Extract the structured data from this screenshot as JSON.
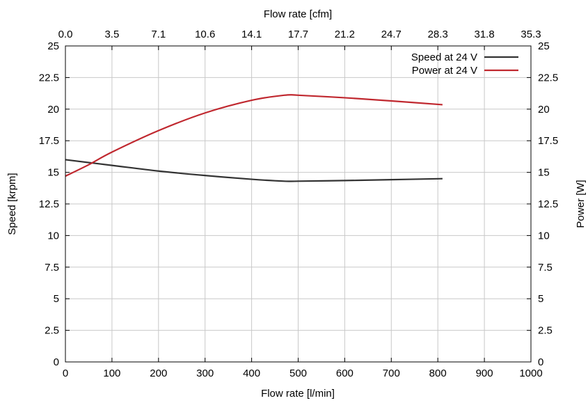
{
  "chart_data": {
    "type": "line",
    "title": "",
    "xlabel": "Flow rate [l/min]",
    "x2label": "Flow rate [cfm]",
    "ylabel": "Speed [krpm]",
    "y2label": "Power [W]",
    "xlim": [
      0,
      1000
    ],
    "ylim": [
      0,
      25
    ],
    "y2lim": [
      0,
      25
    ],
    "xticks": [
      0,
      100,
      200,
      300,
      400,
      500,
      600,
      700,
      800,
      900,
      1000
    ],
    "x2ticks": [
      "0.0",
      "3.5",
      "7.1",
      "10.6",
      "14.1",
      "17.7",
      "21.2",
      "24.7",
      "28.3",
      "31.8",
      "35.3"
    ],
    "yticks": [
      "0",
      "2.5",
      "5",
      "7.5",
      "10",
      "12.5",
      "15",
      "17.5",
      "20",
      "22.5",
      "25"
    ],
    "y2ticks": [
      "0",
      "2.5",
      "5",
      "7.5",
      "10",
      "12.5",
      "15",
      "17.5",
      "20",
      "22.5",
      "25"
    ],
    "grid": true,
    "legend_position": "top-right",
    "series": [
      {
        "name": "Speed at 24 V",
        "axis": "left",
        "color": "#333333",
        "x": [
          0,
          100,
          200,
          300,
          400,
          470,
          500,
          600,
          700,
          810
        ],
        "y": [
          16.0,
          15.55,
          15.1,
          14.75,
          14.45,
          14.3,
          14.3,
          14.35,
          14.42,
          14.5
        ]
      },
      {
        "name": "Power at 24 V",
        "axis": "right",
        "color": "#c0282f",
        "x": [
          0,
          50,
          100,
          200,
          300,
          400,
          470,
          500,
          600,
          700,
          810
        ],
        "y": [
          14.7,
          15.6,
          16.6,
          18.3,
          19.7,
          20.7,
          21.1,
          21.1,
          20.9,
          20.65,
          20.35
        ]
      }
    ]
  }
}
